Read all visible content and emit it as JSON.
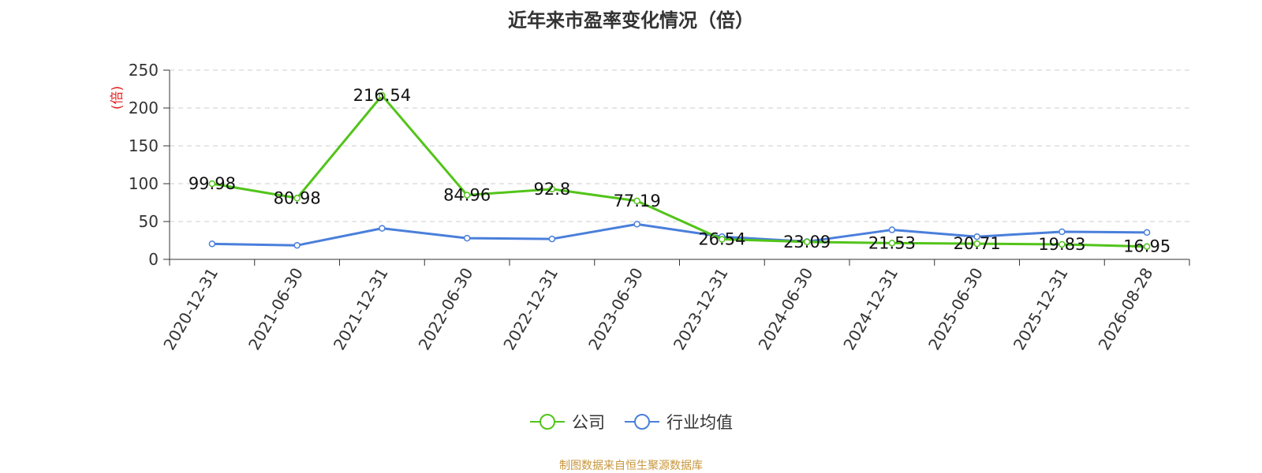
{
  "title": "近年来市盈率变化情况（倍）",
  "source": "制图数据来自恒生聚源数据库",
  "colors": {
    "company": "#52c41a",
    "industry": "#4a7fdb",
    "unit_label": "#e02020",
    "source": "#c8963c"
  },
  "chart_data": {
    "type": "line",
    "title": "近年来市盈率变化情况（倍）",
    "ylabel": "(倍)",
    "xlabel": "",
    "ylim": [
      0,
      250
    ],
    "yticks": [
      0,
      50,
      100,
      150,
      200,
      250
    ],
    "grid": true,
    "legend_position": "bottom",
    "categories": [
      "2020-12-31",
      "2021-06-30",
      "2021-12-31",
      "2022-06-30",
      "2022-12-31",
      "2023-06-30",
      "2023-12-31",
      "2024-06-30",
      "2024-12-31",
      "2025-06-30",
      "2025-12-31",
      "2026-08-28"
    ],
    "series": [
      {
        "name": "公司",
        "values": [
          99.98,
          80.98,
          216.54,
          84.96,
          92.8,
          77.19,
          26.54,
          23.09,
          21.53,
          20.71,
          19.83,
          16.95
        ],
        "labels": [
          "99.98",
          "80.98",
          "216.54",
          "84.96",
          "92.8",
          "77.19",
          "26.54",
          "23.09",
          "21.53",
          "20.71",
          "19.83",
          "16.95"
        ]
      },
      {
        "name": "行业均值",
        "values": [
          20.5,
          18.5,
          41,
          28,
          27,
          46.5,
          30,
          23.5,
          39,
          30,
          36.5,
          35.5
        ]
      }
    ]
  }
}
